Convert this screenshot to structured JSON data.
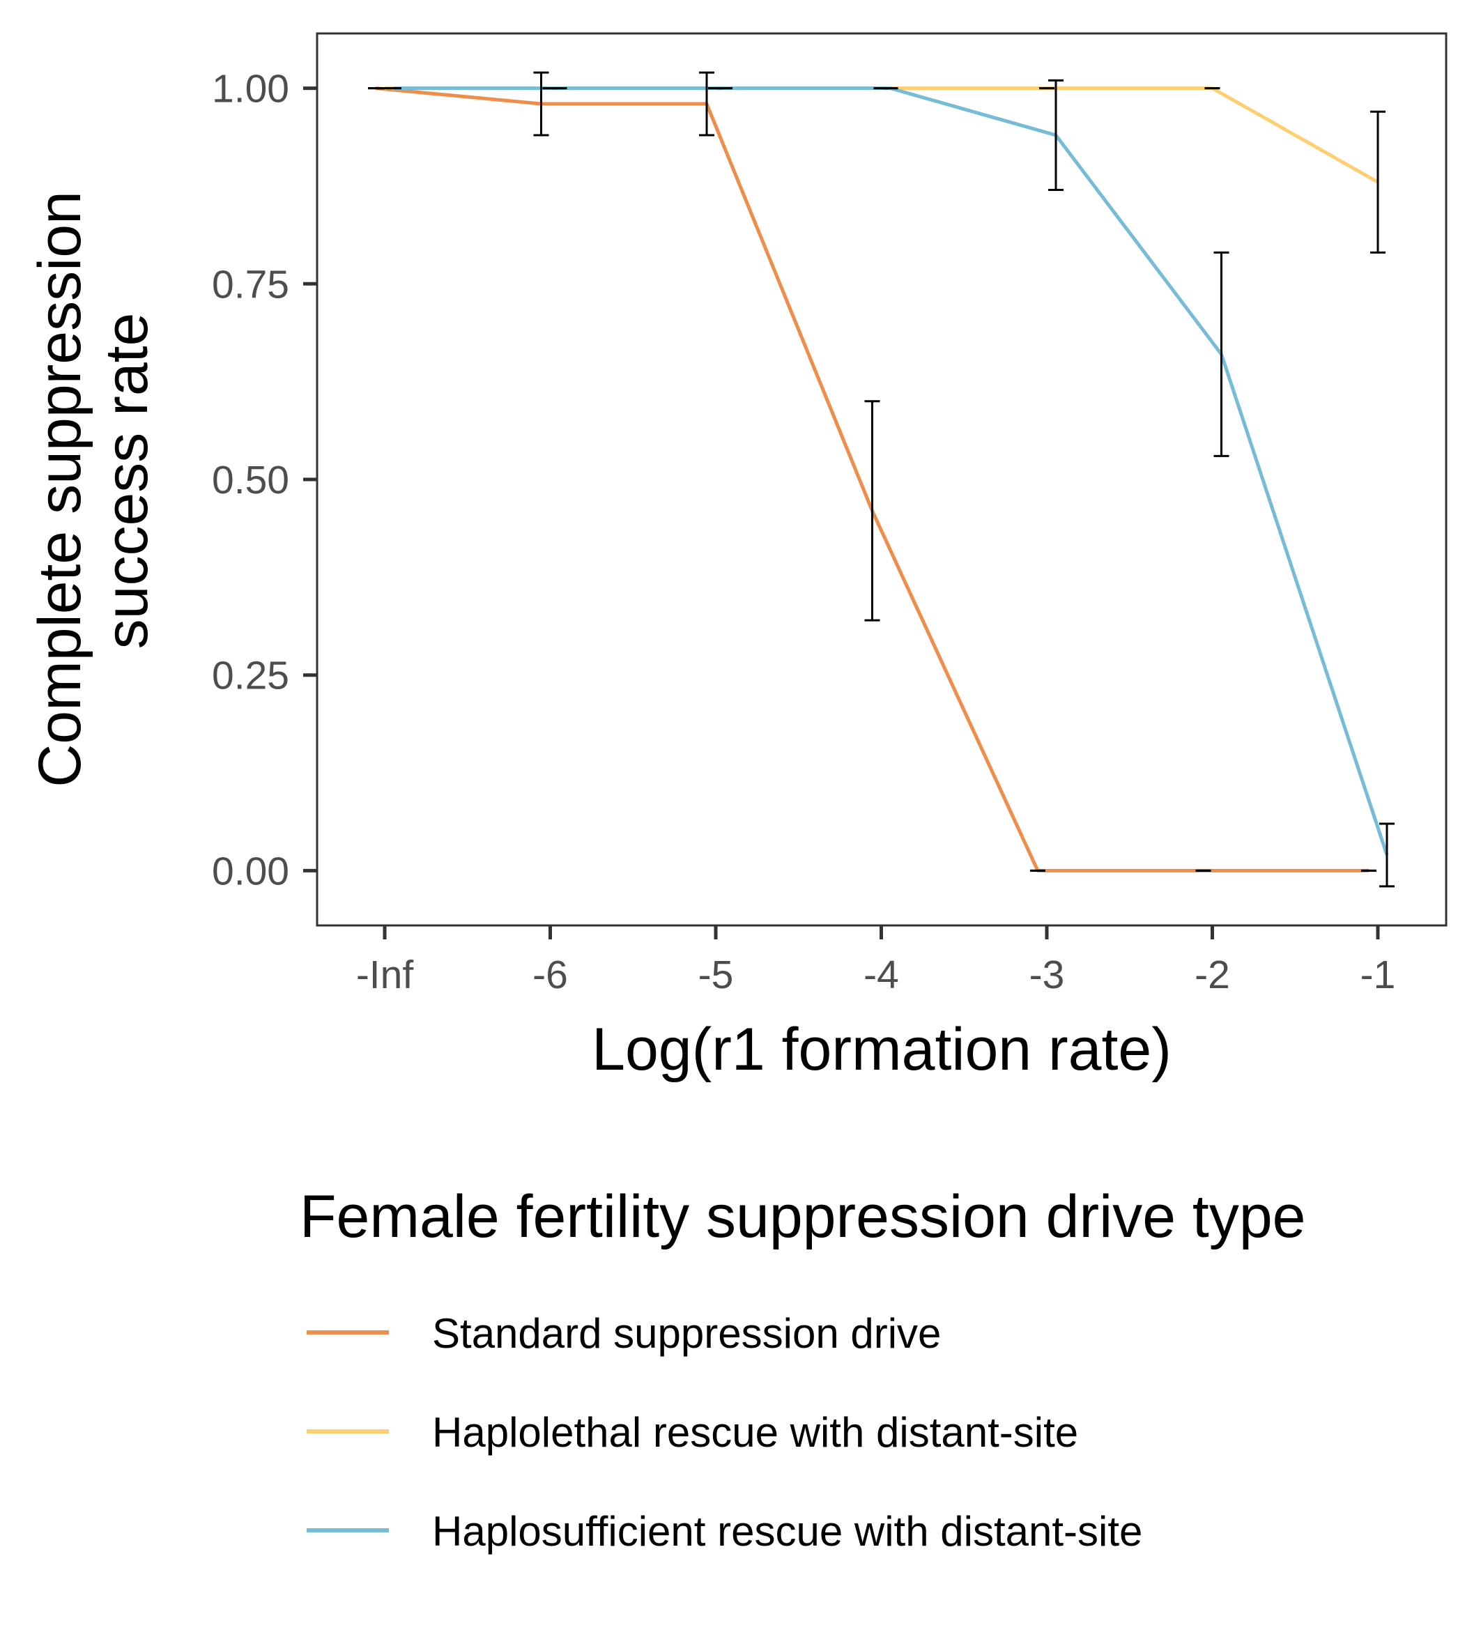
{
  "chart_data": {
    "type": "line",
    "xlabel": "Log(r1 formation rate)",
    "ylabel_lines": [
      "Complete suppression",
      "success rate"
    ],
    "x_tick_labels": [
      "-Inf",
      "-6",
      "-5",
      "-4",
      "-3",
      "-2",
      "-1"
    ],
    "y_ticks": [
      0.0,
      0.25,
      0.5,
      0.75,
      1.0
    ],
    "y_tick_labels": [
      "0.00",
      "0.25",
      "0.50",
      "0.75",
      "1.00"
    ],
    "ylim": [
      -0.07,
      1.07
    ],
    "grid": false,
    "legend": {
      "title": "Female fertility suppression drive type",
      "position": "bottom"
    },
    "series": [
      {
        "name": "Standard suppression drive",
        "color": "#ef8d4a",
        "x": [
          "-Inf",
          "-6",
          "-5",
          "-4",
          "-3",
          "-2",
          "-1"
        ],
        "values": [
          1.0,
          0.98,
          0.98,
          0.46,
          0.0,
          0.0,
          0.0
        ],
        "error_low": [
          1.0,
          0.94,
          0.94,
          0.32,
          0.0,
          0.0,
          0.0
        ],
        "error_high": [
          1.0,
          1.02,
          1.02,
          0.6,
          0.0,
          0.0,
          0.0
        ]
      },
      {
        "name": "Haplolethal rescue with distant-site",
        "color": "#fdcf72",
        "x": [
          "-Inf",
          "-6",
          "-5",
          "-4",
          "-3",
          "-2",
          "-1"
        ],
        "values": [
          1.0,
          1.0,
          1.0,
          1.0,
          1.0,
          1.0,
          0.88
        ],
        "error_low": [
          1.0,
          1.0,
          1.0,
          1.0,
          1.0,
          1.0,
          0.79
        ],
        "error_high": [
          1.0,
          1.0,
          1.0,
          1.0,
          1.0,
          1.0,
          0.97
        ]
      },
      {
        "name": "Haplosufficient rescue with distant-site",
        "color": "#76bcd6",
        "x": [
          "-Inf",
          "-6",
          "-5",
          "-4",
          "-3",
          "-2",
          "-1"
        ],
        "values": [
          1.0,
          1.0,
          1.0,
          1.0,
          0.94,
          0.66,
          0.02
        ],
        "error_low": [
          1.0,
          1.0,
          1.0,
          1.0,
          0.87,
          0.53,
          -0.02
        ],
        "error_high": [
          1.0,
          1.0,
          1.0,
          1.0,
          1.01,
          0.79,
          0.06
        ]
      }
    ]
  }
}
